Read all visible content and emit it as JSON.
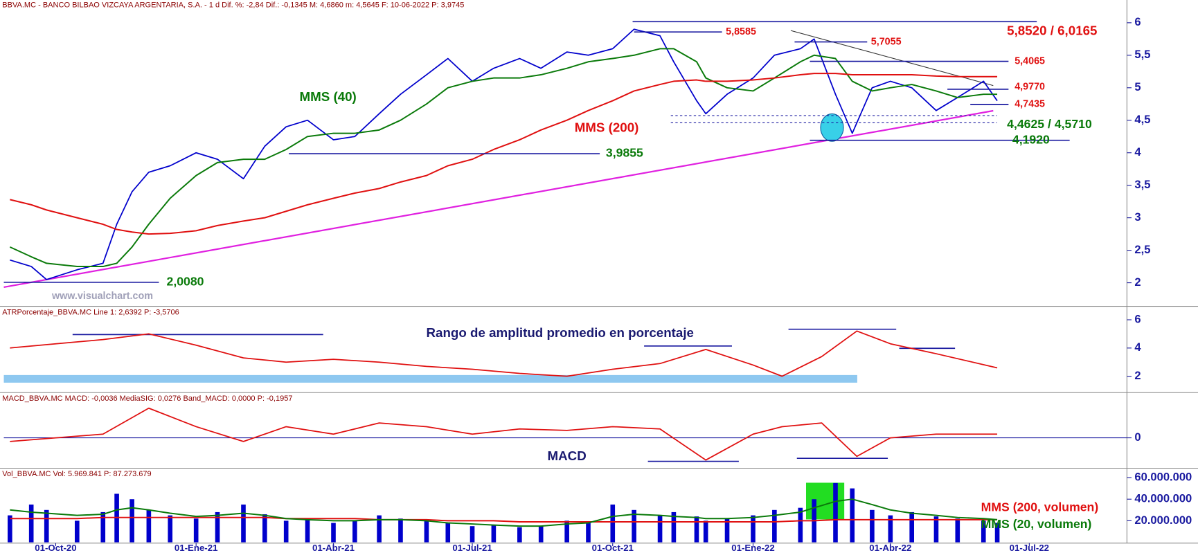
{
  "chart_data": [
    {
      "type": "line",
      "title": "BBVA.MC - BANCO BILBAO VIZCAYA ARGENTARIA, S.A. - 1 d Dif. %: -2,84 Dif.: -0,1345 M: 4,6860 m: 4,5645 F: 10-06-2022 P: 3,9745",
      "watermark": "www.visualchart.com",
      "xlim": [
        "2020-08-28",
        "2022-09-03"
      ],
      "x": [
        "2020-09-01",
        "2020-09-15",
        "2020-09-25",
        "2020-10-15",
        "2020-11-01",
        "2020-11-10",
        "2020-11-20",
        "2020-12-01",
        "2020-12-15",
        "2021-01-01",
        "2021-01-15",
        "2021-02-01",
        "2021-02-15",
        "2021-03-01",
        "2021-03-15",
        "2021-04-01",
        "2021-04-15",
        "2021-05-01",
        "2021-05-15",
        "2021-06-01",
        "2021-06-15",
        "2021-07-01",
        "2021-07-15",
        "2021-08-01",
        "2021-08-15",
        "2021-09-01",
        "2021-09-15",
        "2021-10-01",
        "2021-10-15",
        "2021-11-01",
        "2021-11-10",
        "2021-11-25",
        "2021-12-01",
        "2021-12-15",
        "2022-01-01",
        "2022-01-15",
        "2022-02-01",
        "2022-02-10",
        "2022-02-24",
        "2022-03-07",
        "2022-03-20",
        "2022-04-01",
        "2022-04-15",
        "2022-05-01",
        "2022-05-15",
        "2022-06-01",
        "2022-06-10"
      ],
      "values": [
        2.35,
        2.25,
        2.05,
        2.2,
        2.3,
        2.9,
        3.4,
        3.7,
        3.8,
        4.0,
        3.9,
        3.6,
        4.1,
        4.4,
        4.5,
        4.2,
        4.25,
        4.6,
        4.9,
        5.2,
        5.45,
        5.1,
        5.3,
        5.45,
        5.3,
        5.55,
        5.5,
        5.6,
        5.9,
        5.8,
        5.4,
        4.8,
        4.6,
        4.9,
        5.15,
        5.5,
        5.6,
        5.75,
        4.9,
        4.3,
        5.0,
        5.1,
        5.0,
        4.65,
        4.85,
        5.1,
        4.8
      ],
      "color": "#0000cc",
      "series": [
        {
          "name": "MMS (40)",
          "color": "#0a7a0a",
          "values": [
            2.55,
            2.4,
            2.3,
            2.25,
            2.25,
            2.3,
            2.55,
            2.9,
            3.3,
            3.65,
            3.85,
            3.9,
            3.9,
            4.05,
            4.25,
            4.3,
            4.3,
            4.35,
            4.5,
            4.75,
            5.0,
            5.1,
            5.15,
            5.15,
            5.2,
            5.3,
            5.4,
            5.45,
            5.5,
            5.6,
            5.6,
            5.4,
            5.15,
            5.0,
            4.95,
            5.15,
            5.4,
            5.5,
            5.45,
            5.1,
            4.95,
            5.0,
            5.05,
            4.95,
            4.85,
            4.9,
            4.9
          ]
        },
        {
          "name": "MMS (200)",
          "color": "#e01010",
          "values": [
            3.28,
            3.2,
            3.12,
            3.0,
            2.9,
            2.82,
            2.78,
            2.75,
            2.76,
            2.8,
            2.88,
            2.95,
            3.0,
            3.1,
            3.2,
            3.3,
            3.38,
            3.45,
            3.55,
            3.65,
            3.8,
            3.9,
            4.05,
            4.2,
            4.35,
            4.5,
            4.65,
            4.8,
            4.95,
            5.05,
            5.1,
            5.12,
            5.1,
            5.1,
            5.12,
            5.15,
            5.2,
            5.22,
            5.22,
            5.2,
            5.2,
            5.2,
            5.2,
            5.18,
            5.17,
            5.17,
            5.17
          ]
        }
      ],
      "ylim": [
        1.65,
        6.35
      ],
      "yticks": [
        2,
        {
          "value": 2.5,
          "label": "2,5"
        },
        3,
        {
          "value": 3.5,
          "label": "3,5"
        },
        4,
        {
          "value": 4.5,
          "label": "4,5"
        },
        5,
        {
          "value": 5.5,
          "label": "5,5"
        },
        6
      ],
      "annotations": [
        {
          "text": "5,8585",
          "value": 5.8585,
          "color": "#e01010"
        },
        {
          "text": "5,8520 / 6,0165",
          "value": 6.0165,
          "color": "#e01010"
        },
        {
          "text": "5,7055",
          "value": 5.7055,
          "color": "#e01010"
        },
        {
          "text": "5,4065",
          "value": 5.4065,
          "color": "#e01010"
        },
        {
          "text": "4,9770",
          "value": 4.977,
          "color": "#e01010"
        },
        {
          "text": "4,7435",
          "value": 4.7435,
          "color": "#e01010"
        },
        {
          "text": "4,4625 / 4,5710",
          "values": [
            4.4625,
            4.571
          ],
          "color": "#0a7a0a"
        },
        {
          "text": "4,1920",
          "value": 4.192,
          "color": "#0a7a0a"
        },
        {
          "text": "3,9855",
          "value": 3.9855,
          "color": "#0a7a0a"
        },
        {
          "text": "2,0080",
          "value": 2.008,
          "color": "#0a7a0a"
        }
      ]
    },
    {
      "type": "line",
      "title": "ATRPorcentaje_BBVA.MC Line 1: 2,6392 P: -3,5706",
      "annotation": "Rango de amplitud promedio en porcentaje",
      "xlim": [
        "2020-08-28",
        "2022-09-03"
      ],
      "x": [
        "2020-09-01",
        "2020-10-01",
        "2020-11-01",
        "2020-12-01",
        "2021-01-01",
        "2021-02-01",
        "2021-03-01",
        "2021-04-01",
        "2021-05-01",
        "2021-06-01",
        "2021-07-01",
        "2021-08-01",
        "2021-09-01",
        "2021-10-01",
        "2021-11-01",
        "2021-12-01",
        "2022-01-01",
        "2022-01-20",
        "2022-02-15",
        "2022-03-10",
        "2022-04-01",
        "2022-05-01",
        "2022-06-10"
      ],
      "values": [
        4.0,
        4.3,
        4.6,
        5.0,
        4.2,
        3.3,
        3.0,
        3.2,
        3.0,
        2.7,
        2.5,
        2.2,
        2.0,
        2.5,
        2.9,
        3.9,
        2.8,
        2.0,
        3.4,
        5.2,
        4.3,
        3.6,
        2.6
      ],
      "color": "#e01010",
      "ylim": [
        0.9,
        6.9
      ],
      "yticks": [
        2,
        4,
        6
      ]
    },
    {
      "type": "line",
      "title": "MACD_BBVA.MC MACD: -0,0036 MediaSIG: 0,0276 Band_MACD: 0,0000 P: -0,1957",
      "annotation": "MACD",
      "xlim": [
        "2020-08-28",
        "2022-09-03"
      ],
      "x": [
        "2020-09-01",
        "2020-10-01",
        "2020-11-01",
        "2020-12-01",
        "2021-01-01",
        "2021-02-01",
        "2021-03-01",
        "2021-04-01",
        "2021-05-01",
        "2021-06-01",
        "2021-07-01",
        "2021-08-01",
        "2021-09-01",
        "2021-10-01",
        "2021-11-01",
        "2021-12-01",
        "2022-01-01",
        "2022-01-20",
        "2022-02-15",
        "2022-03-10",
        "2022-04-01",
        "2022-05-01",
        "2022-06-10"
      ],
      "values": [
        -0.05,
        0.0,
        0.05,
        0.4,
        0.15,
        -0.05,
        0.15,
        0.05,
        0.2,
        0.15,
        0.05,
        0.12,
        0.1,
        0.15,
        0.12,
        -0.3,
        0.05,
        0.15,
        0.2,
        -0.25,
        0.0,
        0.05,
        0.05
      ],
      "color": "#e01010",
      "ylim": [
        -0.4,
        0.6
      ],
      "yticks": [
        0
      ],
      "grid": true
    },
    {
      "type": "bar",
      "title": "Vol_BBVA.MC Vol: 5.969.841 P: 87.273.679",
      "xlim": [
        "2020-08-28",
        "2022-09-03"
      ],
      "x": [
        "2020-09-01",
        "2020-09-15",
        "2020-09-25",
        "2020-10-15",
        "2020-11-01",
        "2020-11-10",
        "2020-11-20",
        "2020-12-01",
        "2020-12-15",
        "2021-01-01",
        "2021-01-15",
        "2021-02-01",
        "2021-02-15",
        "2021-03-01",
        "2021-03-15",
        "2021-04-01",
        "2021-04-15",
        "2021-05-01",
        "2021-05-15",
        "2021-06-01",
        "2021-06-15",
        "2021-07-01",
        "2021-07-15",
        "2021-08-01",
        "2021-08-15",
        "2021-09-01",
        "2021-09-15",
        "2021-10-01",
        "2021-10-15",
        "2021-11-01",
        "2021-11-10",
        "2021-11-25",
        "2021-12-01",
        "2021-12-15",
        "2022-01-01",
        "2022-01-15",
        "2022-02-01",
        "2022-02-10",
        "2022-02-24",
        "2022-03-07",
        "2022-03-20",
        "2022-04-01",
        "2022-04-15",
        "2022-05-01",
        "2022-05-15",
        "2022-06-01",
        "2022-06-10"
      ],
      "values": [
        25000000,
        35000000,
        30000000,
        20000000,
        28000000,
        45000000,
        40000000,
        30000000,
        25000000,
        22000000,
        28000000,
        35000000,
        26000000,
        20000000,
        22000000,
        18000000,
        20000000,
        25000000,
        22000000,
        20000000,
        18000000,
        15000000,
        16000000,
        14000000,
        15000000,
        20000000,
        18000000,
        35000000,
        30000000,
        25000000,
        28000000,
        24000000,
        20000000,
        22000000,
        25000000,
        30000000,
        32000000,
        40000000,
        55000000,
        50000000,
        30000000,
        25000000,
        28000000,
        24000000,
        22000000,
        20000000,
        18000000
      ],
      "color": "#0000cc",
      "series": [
        {
          "name": "MMS (200, volumen)",
          "color": "#e01010",
          "values": [
            22000000,
            22000000,
            22000000,
            22000000,
            23000000,
            23000000,
            23000000,
            23000000,
            23000000,
            23000000,
            23000000,
            23000000,
            23000000,
            22000000,
            22000000,
            22000000,
            22000000,
            21000000,
            21000000,
            21000000,
            20000000,
            20000000,
            20000000,
            19000000,
            19000000,
            19000000,
            19000000,
            19000000,
            19000000,
            19000000,
            19000000,
            19000000,
            19000000,
            19000000,
            19000000,
            19000000,
            20000000,
            20000000,
            21000000,
            21000000,
            21000000,
            21000000,
            21000000,
            21000000,
            21000000,
            21000000,
            21000000
          ]
        },
        {
          "name": "MMS (20, volumen)",
          "color": "#0a7a0a",
          "values": [
            30000000,
            28000000,
            27000000,
            25000000,
            26000000,
            30000000,
            32000000,
            30000000,
            27000000,
            24000000,
            25000000,
            27000000,
            25000000,
            22000000,
            21000000,
            20000000,
            20000000,
            21000000,
            21000000,
            20000000,
            18000000,
            17000000,
            16000000,
            15000000,
            15000000,
            17000000,
            18000000,
            24000000,
            26000000,
            25000000,
            24000000,
            23000000,
            22000000,
            22000000,
            23000000,
            25000000,
            28000000,
            32000000,
            38000000,
            40000000,
            35000000,
            30000000,
            27000000,
            25000000,
            23000000,
            22000000,
            21000000
          ]
        }
      ],
      "ylim": [
        0,
        68000000
      ],
      "yticks": [
        {
          "value": 20000000,
          "label": "20.000.000"
        },
        {
          "value": 40000000,
          "label": "40.000.000"
        },
        {
          "value": 60000000,
          "label": "60.000.000"
        }
      ],
      "xticks": [
        {
          "value": "2020-10-01",
          "label": "01-Oct-20"
        },
        {
          "value": "2021-01-01",
          "label": "01-Ene-21"
        },
        {
          "value": "2021-04-01",
          "label": "01-Abr-21"
        },
        {
          "value": "2021-07-01",
          "label": "01-Jul-21"
        },
        {
          "value": "2021-10-01",
          "label": "01-Oct-21"
        },
        {
          "value": "2022-01-01",
          "label": "01-Ene-22"
        },
        {
          "value": "2022-04-01",
          "label": "01-Abr-22"
        },
        {
          "value": "2022-07-01",
          "label": "01-Jul-22"
        }
      ]
    }
  ]
}
